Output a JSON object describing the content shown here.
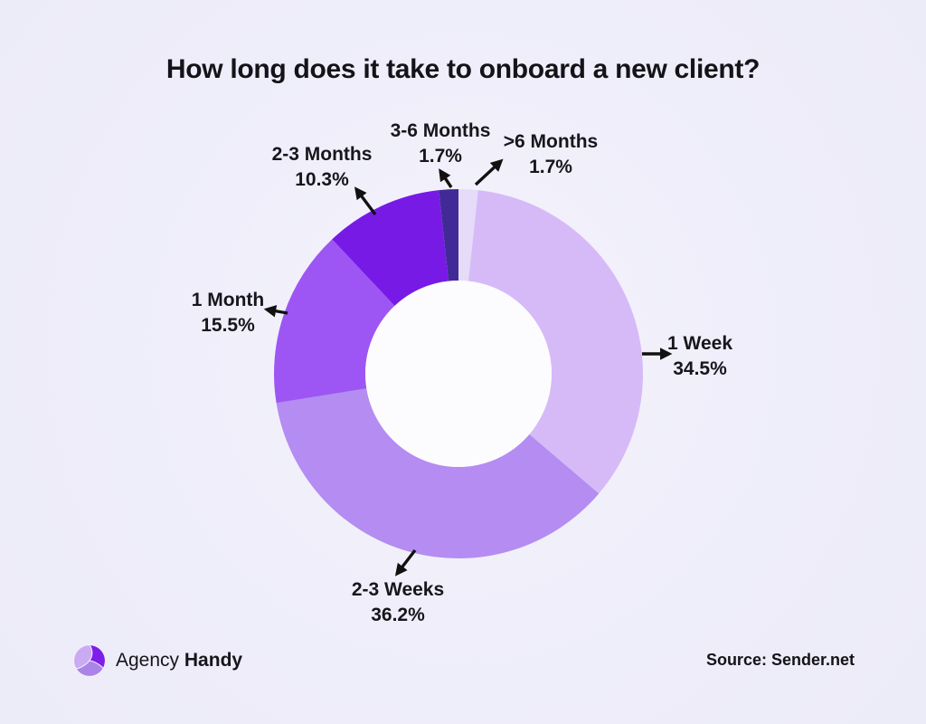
{
  "chart_data": {
    "type": "pie",
    "variant": "donut",
    "title": "How long does it take to onboard a new client?",
    "unit": "%",
    "direction": "clockwise",
    "start_angle": "12 o'clock",
    "legend": "none (direct callout labels with arrows)",
    "slices": [
      {
        "label": ">6 Months",
        "value": 1.7,
        "color": "#e6dbf8"
      },
      {
        "label": "1 Week",
        "value": 34.5,
        "color": "#d6baf8"
      },
      {
        "label": "2-3 Weeks",
        "value": 36.2,
        "color": "#b48cf2"
      },
      {
        "label": "1 Month",
        "value": 15.5,
        "color": "#9d56f3"
      },
      {
        "label": "2-3 Months",
        "value": 10.3,
        "color": "#781ae6"
      },
      {
        "label": "3-6 Months",
        "value": 1.7,
        "color": "#422a96"
      }
    ],
    "hole_color": "#fcfcfe"
  },
  "colors": {
    "background": "#ededf9",
    "text": "#19181e",
    "arrow": "#111111",
    "brand_vivid_purple": "#7d1fe9",
    "brand_lavender_light": "#c9aaf3",
    "brand_lavender_mid": "#ab84e8"
  },
  "footer": {
    "brand_regular": "Agency",
    "brand_bold": "Handy",
    "source": "Source: Sender.net"
  }
}
